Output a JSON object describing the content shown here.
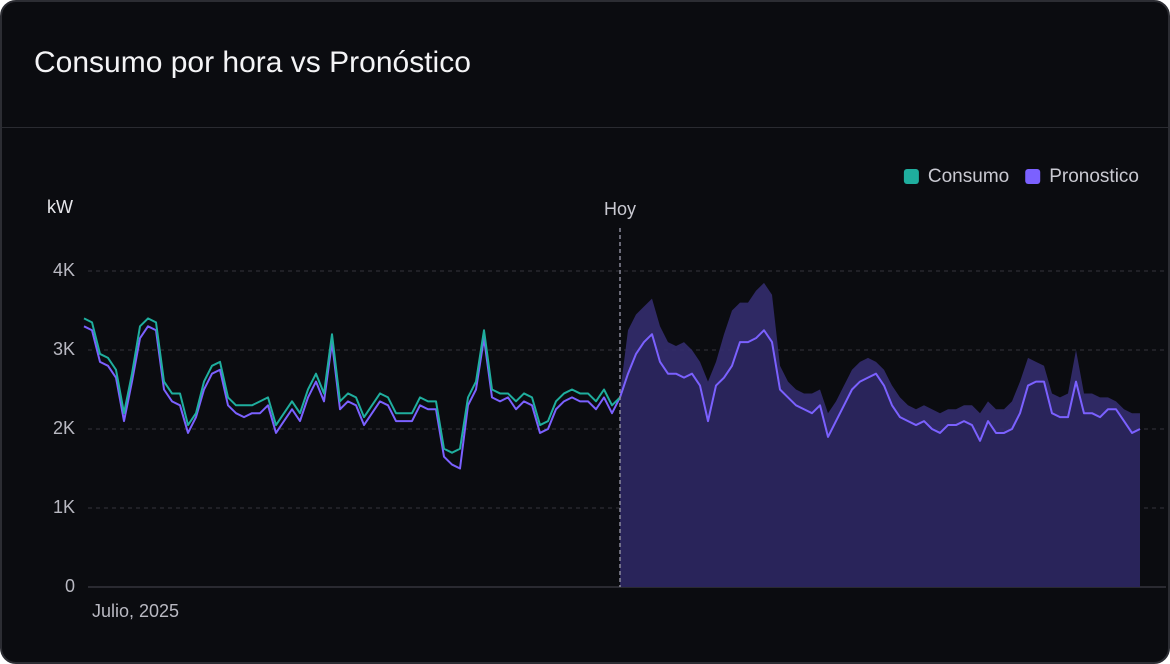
{
  "chart_data": {
    "type": "line",
    "title": "Consumo por hora vs Pronóstico",
    "ylabel": "kW",
    "xlabel": "Julio, 2025",
    "ylim": [
      0,
      4500
    ],
    "yticks": [
      0,
      {
        "value": 1000,
        "label": "1K"
      },
      {
        "value": 2000,
        "label": "2K"
      },
      {
        "value": 3000,
        "label": "3K"
      },
      {
        "value": 4000,
        "label": "4K"
      }
    ],
    "grid": true,
    "legend": "top-right",
    "annotations": [
      {
        "text": "Hoy",
        "x": 67
      }
    ],
    "series": [
      {
        "name": "Consumo",
        "color": "#1fae9e",
        "values": [
          3400,
          3350,
          2950,
          2900,
          2750,
          2200,
          2700,
          3300,
          3400,
          3350,
          2600,
          2450,
          2450,
          2050,
          2200,
          2600,
          2800,
          2850,
          2400,
          2300,
          2300,
          2300,
          2350,
          2400,
          2050,
          2200,
          2350,
          2200,
          2500,
          2700,
          2450,
          3200,
          2350,
          2450,
          2400,
          2150,
          2300,
          2450,
          2400,
          2200,
          2200,
          2200,
          2400,
          2350,
          2350,
          1750,
          1700,
          1750,
          2400,
          2600,
          3250,
          2500,
          2450,
          2450,
          2350,
          2450,
          2400,
          2050,
          2100,
          2350,
          2450,
          2500,
          2450,
          2450,
          2350,
          2500,
          2300,
          2400,
          null,
          null,
          null,
          null,
          null,
          null,
          null,
          null,
          null,
          null,
          null,
          null,
          null,
          null,
          null,
          null,
          null,
          null,
          null,
          null,
          null,
          null,
          null,
          null,
          null,
          null,
          null,
          null,
          null,
          null,
          null,
          null,
          null,
          null,
          null,
          null,
          null,
          null,
          null,
          null,
          null,
          null,
          null,
          null,
          null,
          null,
          null,
          null,
          null,
          null,
          null,
          null,
          null,
          null,
          null,
          null,
          null,
          null,
          null,
          null,
          null,
          null,
          null,
          null,
          null
        ]
      },
      {
        "name": "Pronostico",
        "color": "#7b61ff",
        "values": [
          3300,
          3250,
          2850,
          2800,
          2650,
          2100,
          2600,
          3150,
          3300,
          3250,
          2500,
          2350,
          2300,
          1950,
          2150,
          2500,
          2700,
          2750,
          2300,
          2200,
          2150,
          2200,
          2200,
          2300,
          1950,
          2100,
          2250,
          2100,
          2400,
          2600,
          2350,
          3100,
          2250,
          2350,
          2300,
          2050,
          2200,
          2350,
          2300,
          2100,
          2100,
          2100,
          2300,
          2250,
          2250,
          1650,
          1550,
          1500,
          2300,
          2500,
          3150,
          2400,
          2350,
          2400,
          2250,
          2350,
          2300,
          1950,
          2000,
          2250,
          2350,
          2400,
          2350,
          2350,
          2250,
          2400,
          2200,
          2400,
          2700,
          2950,
          3100,
          3200,
          2850,
          2700,
          2700,
          2650,
          2700,
          2550,
          2100,
          2550,
          2650,
          2800,
          3100,
          3100,
          3150,
          3250,
          3100,
          2500,
          2400,
          2300,
          2250,
          2200,
          2300,
          1900,
          2100,
          2300,
          2500,
          2600,
          2650,
          2700,
          2550,
          2300,
          2150,
          2100,
          2050,
          2100,
          2000,
          1950,
          2050,
          2050,
          2100,
          2050,
          1850,
          2100,
          1950,
          1950,
          2000,
          2200,
          2550,
          2600,
          2600,
          2200,
          2150,
          2150,
          2600,
          2200,
          2200,
          2150,
          2250,
          2250,
          2100,
          1950,
          2000
        ],
        "upper": [
          null,
          null,
          null,
          null,
          null,
          null,
          null,
          null,
          null,
          null,
          null,
          null,
          null,
          null,
          null,
          null,
          null,
          null,
          null,
          null,
          null,
          null,
          null,
          null,
          null,
          null,
          null,
          null,
          null,
          null,
          null,
          null,
          null,
          null,
          null,
          null,
          null,
          null,
          null,
          null,
          null,
          null,
          null,
          null,
          null,
          null,
          null,
          null,
          null,
          null,
          null,
          null,
          null,
          null,
          null,
          null,
          null,
          null,
          null,
          null,
          null,
          null,
          null,
          null,
          null,
          null,
          null,
          2450,
          3250,
          3450,
          3550,
          3650,
          3300,
          3100,
          3050,
          3100,
          3000,
          2850,
          2600,
          2850,
          3200,
          3500,
          3600,
          3600,
          3750,
          3850,
          3700,
          2800,
          2600,
          2500,
          2450,
          2450,
          2500,
          2200,
          2350,
          2550,
          2750,
          2850,
          2900,
          2850,
          2750,
          2550,
          2400,
          2300,
          2250,
          2300,
          2250,
          2200,
          2250,
          2250,
          2300,
          2300,
          2200,
          2350,
          2250,
          2250,
          2350,
          2600,
          2900,
          2850,
          2800,
          2450,
          2400,
          2450,
          3000,
          2450,
          2450,
          2400,
          2400,
          2350,
          2250,
          2200,
          2200
        ]
      }
    ]
  }
}
